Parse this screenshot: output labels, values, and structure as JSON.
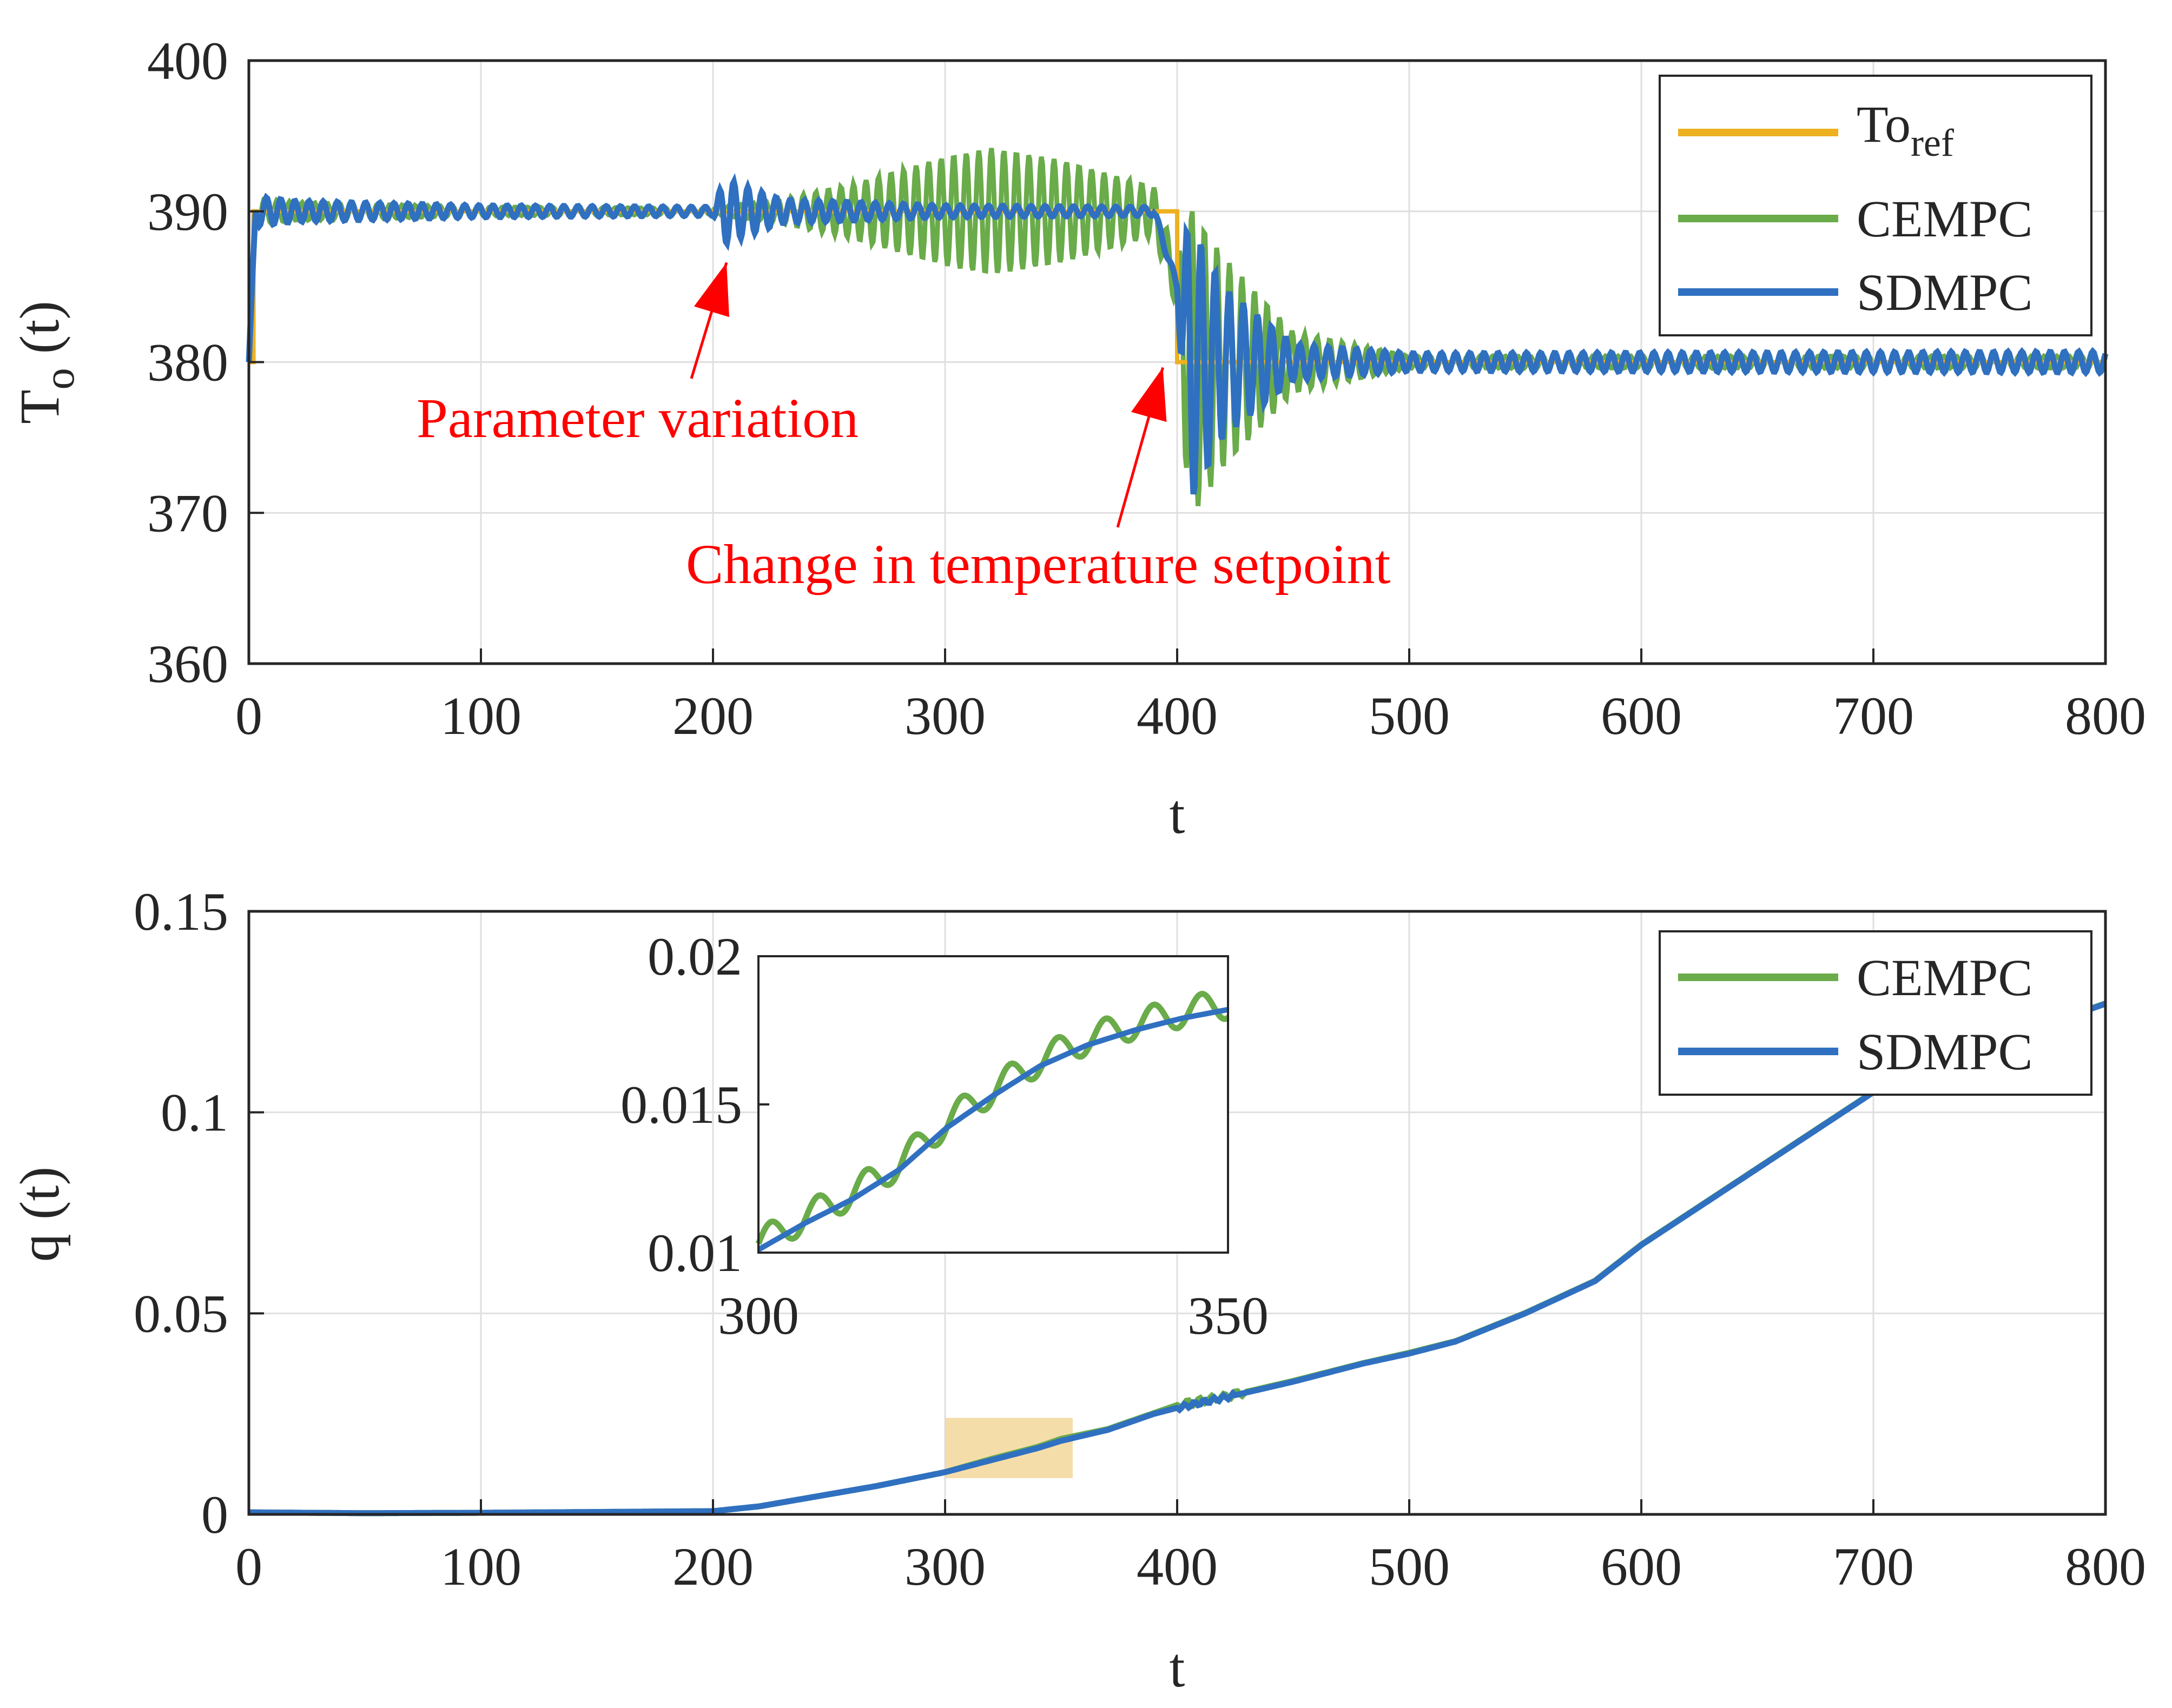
{
  "chart_data": [
    {
      "type": "line",
      "title": "",
      "xlabel": "t",
      "ylabel": "T",
      "ylabel_subscript": "o",
      "ylabel_suffix": " (t)",
      "xlim": [
        0,
        800
      ],
      "ylim": [
        360,
        400
      ],
      "x_ticks": [
        0,
        100,
        200,
        300,
        400,
        500,
        600,
        700,
        800
      ],
      "y_ticks": [
        360,
        370,
        380,
        390,
        400
      ],
      "grid": true,
      "legend_position": "top-right",
      "legend": [
        {
          "label": "To",
          "subscript": "ref",
          "color": "#EDB120"
        },
        {
          "label": "CEMPC",
          "color": "#6AAB4A"
        },
        {
          "label": "SDMPC",
          "color": "#3070C0"
        }
      ],
      "series": [
        {
          "name": "To_ref",
          "color": "#EDB120",
          "x": [
            0,
            2,
            2,
            400,
            400,
            800
          ],
          "y": [
            380,
            380,
            390,
            390,
            380,
            380
          ]
        },
        {
          "name": "CEMPC",
          "color": "#6AAB4A",
          "description_points": {
            "x": [
              0,
              3,
              20,
              100,
              200,
              230,
              260,
              300,
              320,
              350,
              390,
              400,
              405,
              420,
              450,
              500,
              800
            ],
            "amplitude": [
              0,
              0.9,
              0.6,
              0.3,
              0.2,
              0.8,
              1.8,
              3.6,
              4.2,
              3.4,
              1.6,
              1.6,
              10.5,
              7,
              2,
              0.4,
              0.4
            ],
            "center": [
              380,
              390,
              390,
              390,
              390,
              390,
              390,
              390,
              390,
              390,
              390,
              385,
              380,
              380,
              380,
              380,
              380
            ]
          }
        },
        {
          "name": "SDMPC",
          "color": "#3070C0",
          "description_points": {
            "x": [
              0,
              3,
              20,
              100,
              200,
              205,
              215,
              230,
              300,
              390,
              400,
              405,
              420,
              450,
              500,
              800
            ],
            "amplitude": [
              0,
              1.0,
              0.7,
              0.4,
              0.3,
              2.2,
              1.6,
              0.8,
              0.4,
              0.3,
              0.3,
              9.5,
              5,
              1.2,
              0.6,
              0.7
            ],
            "center": [
              380,
              390,
              390,
              390,
              390,
              390,
              390,
              390,
              390,
              390,
              385,
              380,
              380,
              380,
              380,
              380
            ]
          }
        }
      ],
      "annotations": [
        {
          "text": "Parameter variation",
          "arrow_to": [
            200,
            387.5
          ]
        },
        {
          "text": "Change in temperature setpoint",
          "arrow_to": [
            395,
            380
          ]
        }
      ]
    },
    {
      "type": "line",
      "title": "",
      "xlabel": "t",
      "ylabel": "q (t)",
      "xlim": [
        0,
        800
      ],
      "ylim": [
        0,
        0.15
      ],
      "x_ticks": [
        0,
        100,
        200,
        300,
        400,
        500,
        600,
        700,
        800
      ],
      "y_ticks": [
        0,
        0.05,
        0.1,
        0.15
      ],
      "y_tick_labels": [
        "0",
        "0.05",
        "0.1",
        "0.15"
      ],
      "grid": true,
      "legend_position": "top-right",
      "legend": [
        {
          "label": "CEMPC",
          "color": "#6AAB4A"
        },
        {
          "label": "SDMPC",
          "color": "#3070C0"
        }
      ],
      "series": [
        {
          "name": "SDMPC",
          "color": "#3070C0",
          "x": [
            0,
            50,
            100,
            150,
            200,
            220,
            250,
            270,
            300,
            320,
            340,
            350,
            370,
            390,
            400,
            420,
            450,
            480,
            500,
            520,
            550,
            580,
            600,
            650,
            700,
            750,
            800
          ],
          "y": [
            0.0005,
            0.0003,
            0.0004,
            0.0006,
            0.0008,
            0.002,
            0.005,
            0.007,
            0.0105,
            0.0135,
            0.0165,
            0.0183,
            0.021,
            0.025,
            0.0265,
            0.029,
            0.033,
            0.0375,
            0.04,
            0.043,
            0.05,
            0.058,
            0.067,
            0.086,
            0.105,
            0.117,
            0.127
          ]
        },
        {
          "name": "CEMPC",
          "color": "#6AAB4A",
          "x": [
            0,
            50,
            100,
            150,
            200,
            220,
            250,
            270,
            300,
            320,
            340,
            350,
            370,
            390,
            400,
            420,
            450,
            480,
            500,
            520,
            550,
            580,
            600,
            650,
            700,
            750,
            800
          ],
          "y": [
            0.0005,
            0.0003,
            0.0004,
            0.0006,
            0.0008,
            0.002,
            0.005,
            0.007,
            0.0105,
            0.0138,
            0.0168,
            0.0188,
            0.0212,
            0.0252,
            0.0272,
            0.0292,
            0.0332,
            0.0376,
            0.0402,
            0.0431,
            0.0501,
            0.0581,
            0.0671,
            0.0861,
            0.1051,
            0.1171,
            0.1271
          ]
        }
      ],
      "highlight_region": {
        "x": [
          300,
          355
        ],
        "y": [
          0.009,
          0.024
        ],
        "color": "#F3D79A"
      },
      "inset": {
        "xlim": [
          300,
          350
        ],
        "ylim": [
          0.01,
          0.02
        ],
        "x_ticks": [
          300,
          350
        ],
        "y_ticks": [
          0.01,
          0.015,
          0.02
        ],
        "y_tick_labels": [
          "0.01",
          "0.015",
          "0.02"
        ],
        "sdmpc": {
          "x": [
            300,
            305,
            310,
            315,
            320,
            325,
            330,
            335,
            340,
            345,
            350
          ],
          "y": [
            0.0101,
            0.011,
            0.0118,
            0.0128,
            0.0142,
            0.0153,
            0.0163,
            0.017,
            0.0175,
            0.0179,
            0.0182
          ]
        },
        "cempc_wave": {
          "amplitude": 0.0005,
          "period": 5.1
        }
      }
    }
  ]
}
